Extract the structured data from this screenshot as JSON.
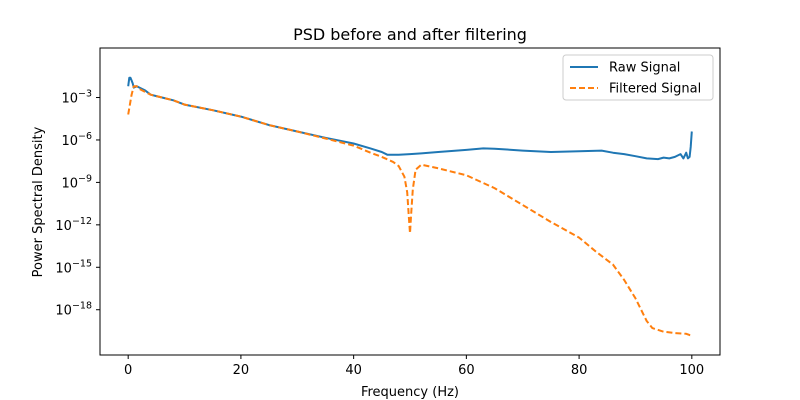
{
  "chart_data": {
    "type": "line",
    "title": "PSD before and after filtering",
    "xlabel": "Frequency (Hz)",
    "ylabel": "Power Spectral Density",
    "xlim": [
      -5,
      105
    ],
    "ylim_log10": [
      -21.2,
      0.5
    ],
    "yscale": "log",
    "grid": false,
    "legend_position": "top-right",
    "x_ticks": [
      {
        "value": 0,
        "label": "0"
      },
      {
        "value": 20,
        "label": "20"
      },
      {
        "value": 40,
        "label": "40"
      },
      {
        "value": 60,
        "label": "60"
      },
      {
        "value": 80,
        "label": "80"
      },
      {
        "value": 100,
        "label": "100"
      }
    ],
    "y_ticks": [
      {
        "exp": -3,
        "base": "10",
        "sup": "−3"
      },
      {
        "exp": -6,
        "base": "10",
        "sup": "−6"
      },
      {
        "exp": -9,
        "base": "10",
        "sup": "−9"
      },
      {
        "exp": -12,
        "base": "10",
        "sup": "−12"
      },
      {
        "exp": -15,
        "base": "10",
        "sup": "−15"
      },
      {
        "exp": -18,
        "base": "10",
        "sup": "−18"
      }
    ],
    "series": [
      {
        "name": "Raw Signal",
        "color": "#1f77b4",
        "dash": "solid",
        "x": [
          0,
          0.2,
          0.4,
          0.6,
          0.8,
          1,
          1.5,
          2,
          3,
          4,
          5,
          6,
          8,
          10,
          15,
          20,
          25,
          30,
          35,
          40,
          43,
          45,
          46,
          48,
          50,
          52,
          55,
          60,
          63,
          65,
          70,
          75,
          80,
          84,
          86,
          88,
          90,
          92,
          94,
          95,
          96,
          97,
          98,
          98.5,
          99,
          99.3,
          99.6,
          99.8,
          100
        ],
        "y_log10": [
          -2.2,
          -1.6,
          -1.6,
          -1.8,
          -2.0,
          -2.3,
          -2.2,
          -2.3,
          -2.5,
          -2.8,
          -2.9,
          -3.0,
          -3.2,
          -3.5,
          -3.9,
          -4.35,
          -4.95,
          -5.4,
          -5.85,
          -6.25,
          -6.6,
          -6.85,
          -7.05,
          -7.05,
          -7.0,
          -6.95,
          -6.85,
          -6.7,
          -6.6,
          -6.62,
          -6.75,
          -6.85,
          -6.8,
          -6.75,
          -6.9,
          -7.0,
          -7.15,
          -7.3,
          -7.35,
          -7.25,
          -7.3,
          -7.2,
          -7.0,
          -7.3,
          -6.9,
          -7.3,
          -7.2,
          -6.5,
          -5.4
        ]
      },
      {
        "name": "Filtered Signal",
        "color": "#ff7f0e",
        "dash": "dashed",
        "x": [
          0,
          0.3,
          0.6,
          1,
          1.5,
          2,
          3,
          4,
          5,
          6,
          8,
          10,
          15,
          20,
          25,
          30,
          35,
          40,
          43,
          45,
          47,
          48,
          49,
          49.5,
          49.8,
          50,
          50.2,
          50.5,
          51,
          52,
          55,
          60,
          65,
          70,
          75,
          80,
          83,
          86,
          88,
          90,
          91,
          92,
          93,
          95,
          97,
          99,
          99.7,
          100
        ],
        "y_log10": [
          -4.2,
          -3.5,
          -2.8,
          -2.2,
          -2.2,
          -2.4,
          -2.6,
          -2.8,
          -2.9,
          -3.0,
          -3.2,
          -3.5,
          -3.9,
          -4.35,
          -4.95,
          -5.4,
          -5.9,
          -6.4,
          -6.9,
          -7.2,
          -7.55,
          -7.85,
          -8.6,
          -9.7,
          -11.5,
          -12.6,
          -11.3,
          -9.5,
          -8.1,
          -7.75,
          -8.0,
          -8.5,
          -9.4,
          -10.6,
          -11.8,
          -12.9,
          -13.9,
          -14.8,
          -15.9,
          -17.2,
          -18.0,
          -18.8,
          -19.3,
          -19.55,
          -19.65,
          -19.7,
          -19.8,
          -19.8
        ]
      }
    ]
  }
}
